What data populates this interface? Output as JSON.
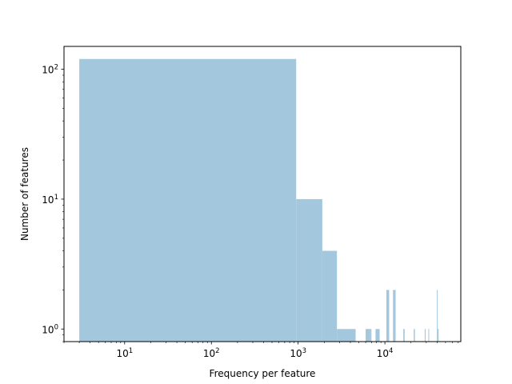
{
  "chart_data": {
    "type": "bar",
    "title": "",
    "xlabel": "Frequency per feature",
    "ylabel": "Number of features",
    "xscale": "log",
    "yscale": "log",
    "xlim": [
      2,
      75000
    ],
    "ylim": [
      0.8,
      150
    ],
    "grid": false,
    "legend": "none",
    "bar_color": "#a3c8de",
    "x_major_ticks": [
      {
        "value": 10,
        "base": "10",
        "exp": "1"
      },
      {
        "value": 100,
        "base": "10",
        "exp": "2"
      },
      {
        "value": 1000,
        "base": "10",
        "exp": "3"
      },
      {
        "value": 10000,
        "base": "10",
        "exp": "4"
      }
    ],
    "y_major_ticks": [
      {
        "value": 1,
        "base": "10",
        "exp": "0"
      },
      {
        "value": 10,
        "base": "10",
        "exp": "1"
      },
      {
        "value": 100,
        "base": "10",
        "exp": "2"
      }
    ],
    "bins": [
      {
        "x0": 3,
        "x1": 950,
        "count": 120
      },
      {
        "x0": 950,
        "x1": 1900,
        "count": 10
      },
      {
        "x0": 1900,
        "x1": 2800,
        "count": 4
      },
      {
        "x0": 2800,
        "x1": 4600,
        "count": 1
      },
      {
        "x0": 6000,
        "x1": 6700,
        "count": 1
      },
      {
        "x0": 6700,
        "x1": 7000,
        "count": 1
      },
      {
        "x0": 7800,
        "x1": 8700,
        "count": 1
      },
      {
        "x0": 10400,
        "x1": 11200,
        "count": 2
      },
      {
        "x0": 12400,
        "x1": 13300,
        "count": 2
      },
      {
        "x0": 16300,
        "x1": 16900,
        "count": 1
      },
      {
        "x0": 21500,
        "x1": 22200,
        "count": 1
      },
      {
        "x0": 28800,
        "x1": 29500,
        "count": 1
      },
      {
        "x0": 31700,
        "x1": 32300,
        "count": 1
      },
      {
        "x0": 39800,
        "x1": 40500,
        "count": 2
      },
      {
        "x0": 40500,
        "x1": 41600,
        "count": 1
      }
    ]
  }
}
